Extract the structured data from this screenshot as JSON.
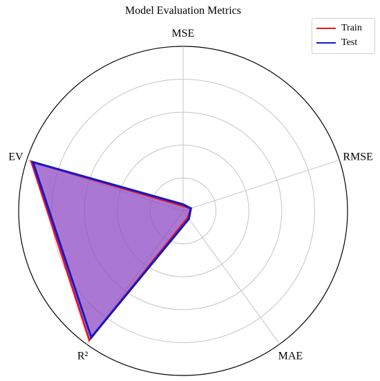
{
  "chart_data": {
    "type": "radar",
    "title": "Model Evaluation Metrics",
    "categories": [
      "MSE",
      "RMSE",
      "MAE",
      "R²",
      "EV"
    ],
    "r_range": [
      0,
      1
    ],
    "ring_values": [
      0.2,
      0.4,
      0.6,
      0.8,
      1.0
    ],
    "grid": true,
    "legend_position": "top-right",
    "series": [
      {
        "name": "Train",
        "color": "#e31a1c",
        "values": [
          0.03,
          0.05,
          0.05,
          0.97,
          0.97
        ]
      },
      {
        "name": "Test",
        "color": "#1515d0",
        "values": [
          0.04,
          0.05,
          0.06,
          0.95,
          0.96
        ]
      }
    ],
    "fill_color": "#8e4cc4"
  }
}
